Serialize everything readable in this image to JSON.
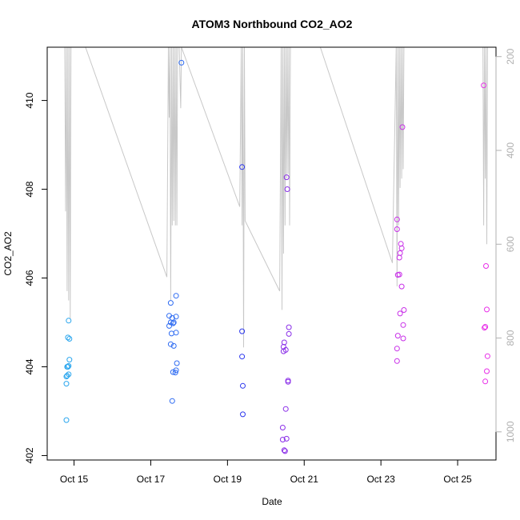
{
  "chart_data": {
    "type": "scatter",
    "title": "ATOM3 Northbound CO2_AO2",
    "xlabel": "Date",
    "ylabel": "CO2_AO2",
    "xlim": [
      "2016-10-14",
      "2016-10-26.3"
    ],
    "ylim": [
      401.9,
      411.2
    ],
    "x_ticks": [
      "Oct 15",
      "Oct 17",
      "Oct 19",
      "Oct 21",
      "Oct 23",
      "Oct 25"
    ],
    "y_ticks": [
      402,
      404,
      406,
      408,
      410
    ],
    "y2_ticks": [
      200,
      400,
      600,
      800,
      1000
    ],
    "y2_lim": [
      1060,
      180
    ],
    "y2_inverted": true,
    "grid": false,
    "points": [
      {
        "t": "2016-10-14 19:12",
        "y": 402.8,
        "color": "#2aa6ee"
      },
      {
        "t": "2016-10-14 19:12",
        "y": 403.62,
        "color": "#2aa6ee"
      },
      {
        "t": "2016-10-14 19:12",
        "y": 403.78,
        "color": "#2aa6ee"
      },
      {
        "t": "2016-10-14 19:41",
        "y": 403.8,
        "color": "#2aa6ee"
      },
      {
        "t": "2016-10-14 19:41",
        "y": 404.0,
        "color": "#2aa6ee"
      },
      {
        "t": "2016-10-14 20:10",
        "y": 404.66,
        "color": "#2aa6ee"
      },
      {
        "t": "2016-10-14 20:10",
        "y": 404.0,
        "color": "#2aa6ee"
      },
      {
        "t": "2016-10-14 20:38",
        "y": 403.83,
        "color": "#2aa6ee"
      },
      {
        "t": "2016-10-14 20:38",
        "y": 404.02,
        "color": "#2aa6ee"
      },
      {
        "t": "2016-10-14 21:07",
        "y": 404.16,
        "color": "#2aa6ee"
      },
      {
        "t": "2016-10-14 21:07",
        "y": 404.63,
        "color": "#2aa6ee"
      },
      {
        "t": "2016-10-14 20:38",
        "y": 405.04,
        "color": "#2aa6ee"
      },
      {
        "t": "2016-10-17 11:31",
        "y": 405.15,
        "color": "#2f6cf2"
      },
      {
        "t": "2016-10-17 11:31",
        "y": 404.92,
        "color": "#2f6cf2"
      },
      {
        "t": "2016-10-17 12:29",
        "y": 405.44,
        "color": "#2f6cf2"
      },
      {
        "t": "2016-10-17 12:29",
        "y": 405.0,
        "color": "#2f6cf2"
      },
      {
        "t": "2016-10-17 12:29",
        "y": 404.51,
        "color": "#2f6cf2"
      },
      {
        "t": "2016-10-17 12:58",
        "y": 404.75,
        "color": "#2f6cf2"
      },
      {
        "t": "2016-10-17 13:26",
        "y": 405.1,
        "color": "#2f6cf2"
      },
      {
        "t": "2016-10-17 13:26",
        "y": 403.23,
        "color": "#2f6cf2"
      },
      {
        "t": "2016-10-17 13:55",
        "y": 404.98,
        "color": "#2f6cf2"
      },
      {
        "t": "2016-10-17 13:55",
        "y": 403.88,
        "color": "#2f6cf2"
      },
      {
        "t": "2016-10-17 14:24",
        "y": 405.0,
        "color": "#2f6cf2"
      },
      {
        "t": "2016-10-17 14:24",
        "y": 404.47,
        "color": "#2f6cf2"
      },
      {
        "t": "2016-10-17 15:22",
        "y": 403.87,
        "color": "#2f6cf2"
      },
      {
        "t": "2016-10-17 15:50",
        "y": 405.6,
        "color": "#2f6cf2"
      },
      {
        "t": "2016-10-17 15:50",
        "y": 405.13,
        "color": "#2f6cf2"
      },
      {
        "t": "2016-10-17 15:50",
        "y": 404.77,
        "color": "#2f6cf2"
      },
      {
        "t": "2016-10-17 16:19",
        "y": 404.08,
        "color": "#2f6cf2"
      },
      {
        "t": "2016-10-17 15:50",
        "y": 403.92,
        "color": "#2f6cf2"
      },
      {
        "t": "2016-10-17 19:12",
        "y": 410.85,
        "color": "#2f6cf2"
      },
      {
        "t": "2016-10-19 09:07",
        "y": 408.5,
        "color": "#2a35ee"
      },
      {
        "t": "2016-10-19 09:07",
        "y": 404.8,
        "color": "#2a35ee"
      },
      {
        "t": "2016-10-19 09:07",
        "y": 404.23,
        "color": "#2a35ee"
      },
      {
        "t": "2016-10-19 09:36",
        "y": 403.57,
        "color": "#2a35ee"
      },
      {
        "t": "2016-10-19 09:36",
        "y": 402.93,
        "color": "#2a35ee"
      },
      {
        "t": "2016-10-20 10:34",
        "y": 402.63,
        "color": "#8a2ee8"
      },
      {
        "t": "2016-10-20 10:34",
        "y": 402.36,
        "color": "#8a2ee8"
      },
      {
        "t": "2016-10-20 11:02",
        "y": 404.35,
        "color": "#8a2ee8"
      },
      {
        "t": "2016-10-20 11:02",
        "y": 404.45,
        "color": "#8a2ee8"
      },
      {
        "t": "2016-10-20 11:31",
        "y": 404.55,
        "color": "#8a2ee8"
      },
      {
        "t": "2016-10-20 11:31",
        "y": 402.12,
        "color": "#8a2ee8"
      },
      {
        "t": "2016-10-20 12:00",
        "y": 402.1,
        "color": "#8a2ee8"
      },
      {
        "t": "2016-10-20 12:29",
        "y": 403.05,
        "color": "#8a2ee8"
      },
      {
        "t": "2016-10-20 12:29",
        "y": 404.38,
        "color": "#8a2ee8"
      },
      {
        "t": "2016-10-20 12:58",
        "y": 402.38,
        "color": "#8a2ee8"
      },
      {
        "t": "2016-10-20 12:58",
        "y": 408.27,
        "color": "#8a2ee8"
      },
      {
        "t": "2016-10-20 13:26",
        "y": 408.0,
        "color": "#8a2ee8"
      },
      {
        "t": "2016-10-20 13:55",
        "y": 403.69,
        "color": "#8a2ee8"
      },
      {
        "t": "2016-10-20 13:55",
        "y": 403.66,
        "color": "#8a2ee8"
      },
      {
        "t": "2016-10-20 14:24",
        "y": 404.89,
        "color": "#8a2ee8"
      },
      {
        "t": "2016-10-20 14:24",
        "y": 404.74,
        "color": "#8a2ee8"
      },
      {
        "t": "2016-10-23 10:05",
        "y": 407.32,
        "color": "#c82ee8"
      },
      {
        "t": "2016-10-23 10:05",
        "y": 407.1,
        "color": "#c82ee8"
      },
      {
        "t": "2016-10-23 10:34",
        "y": 406.07,
        "color": "#c82ee8"
      },
      {
        "t": "2016-10-23 10:05",
        "y": 404.41,
        "color": "#c82ee8"
      },
      {
        "t": "2016-10-23 10:05",
        "y": 404.13,
        "color": "#c82ee8"
      },
      {
        "t": "2016-10-23 10:34",
        "y": 404.7,
        "color": "#c82ee8"
      },
      {
        "t": "2016-10-23 11:31",
        "y": 406.08,
        "color": "#c82ee8"
      },
      {
        "t": "2016-10-23 11:31",
        "y": 406.46,
        "color": "#c82ee8"
      },
      {
        "t": "2016-10-23 12:00",
        "y": 406.56,
        "color": "#c82ee8"
      },
      {
        "t": "2016-10-23 12:00",
        "y": 405.2,
        "color": "#c82ee8"
      },
      {
        "t": "2016-10-23 12:29",
        "y": 406.77,
        "color": "#c82ee8"
      },
      {
        "t": "2016-10-23 12:58",
        "y": 406.67,
        "color": "#c82ee8"
      },
      {
        "t": "2016-10-23 12:58",
        "y": 405.81,
        "color": "#c82ee8"
      },
      {
        "t": "2016-10-23 13:26",
        "y": 409.4,
        "color": "#c82ee8"
      },
      {
        "t": "2016-10-23 13:55",
        "y": 404.94,
        "color": "#c82ee8"
      },
      {
        "t": "2016-10-23 13:55",
        "y": 404.64,
        "color": "#c82ee8"
      },
      {
        "t": "2016-10-23 14:24",
        "y": 405.28,
        "color": "#c82ee8"
      },
      {
        "t": "2016-10-25 16:19",
        "y": 410.34,
        "color": "#e82ee8"
      },
      {
        "t": "2016-10-25 16:48",
        "y": 404.88,
        "color": "#e82ee8"
      },
      {
        "t": "2016-10-25 17:17",
        "y": 404.9,
        "color": "#e82ee8"
      },
      {
        "t": "2016-10-25 17:17",
        "y": 403.67,
        "color": "#e82ee8"
      },
      {
        "t": "2016-10-25 17:46",
        "y": 406.27,
        "color": "#e82ee8"
      },
      {
        "t": "2016-10-25 18:14",
        "y": 405.29,
        "color": "#e82ee8"
      },
      {
        "t": "2016-10-25 18:14",
        "y": 403.9,
        "color": "#e82ee8"
      },
      {
        "t": "2016-10-25 18:43",
        "y": 404.24,
        "color": "#e82ee8"
      }
    ],
    "secondary_trace": {
      "color": "#c8c8c8",
      "axis": "right",
      "t": [
        "2016-10-14 18:14",
        "2016-10-14 18:43",
        "2016-10-14 19:12",
        "2016-10-14 19:41",
        "2016-10-14 20:10",
        "2016-10-14 20:38",
        "2016-10-14 21:07",
        "2016-10-14 21:36",
        "2016-10-14 22:05",
        "2016-10-15 07:12",
        "2016-10-17 10:05",
        "2016-10-17 11:02",
        "2016-10-17 11:31",
        "2016-10-17 12:00",
        "2016-10-17 12:29",
        "2016-10-17 12:58",
        "2016-10-17 13:26",
        "2016-10-17 13:55",
        "2016-10-17 14:24",
        "2016-10-17 14:53",
        "2016-10-17 15:22",
        "2016-10-17 15:50",
        "2016-10-17 16:19",
        "2016-10-17 16:48",
        "2016-10-17 17:46",
        "2016-10-17 18:43",
        "2016-10-17 19:12",
        "2016-10-19 07:41",
        "2016-10-19 08:38",
        "2016-10-19 09:07",
        "2016-10-19 09:36",
        "2016-10-19 10:05",
        "2016-10-19 10:34",
        "2016-10-19 11:02",
        "2016-10-20 08:38",
        "2016-10-20 09:36",
        "2016-10-20 10:05",
        "2016-10-20 10:34",
        "2016-10-20 11:02",
        "2016-10-20 11:31",
        "2016-10-20 12:00",
        "2016-10-20 12:29",
        "2016-10-20 12:58",
        "2016-10-20 13:26",
        "2016-10-20 13:55",
        "2016-10-20 14:24",
        "2016-10-20 14:53",
        "2016-10-20 15:22",
        "2016-10-21 10:05",
        "2016-10-23 07:12",
        "2016-10-23 09:36",
        "2016-10-23 10:05",
        "2016-10-23 10:34",
        "2016-10-23 11:02",
        "2016-10-23 11:31",
        "2016-10-23 12:00",
        "2016-10-23 12:29",
        "2016-10-23 12:58",
        "2016-10-23 13:26",
        "2016-10-23 13:55",
        "2016-10-23 14:24",
        "2016-10-24 22:05",
        "2016-10-25 15:50",
        "2016-10-25 16:19",
        "2016-10-25 16:48",
        "2016-10-25 17:17",
        "2016-10-25 17:46",
        "2016-10-25 18:14",
        "2016-10-25 18:43"
      ],
      "y": [
        180,
        530,
        180,
        700,
        180,
        720,
        180,
        760,
        180,
        180,
        670,
        180,
        330,
        180,
        720,
        180,
        560,
        180,
        550,
        180,
        560,
        180,
        560,
        180,
        180,
        310,
        180,
        520,
        180,
        560,
        180,
        820,
        180,
        550,
        700,
        180,
        740,
        180,
        620,
        180,
        560,
        180,
        460,
        180,
        450,
        180,
        560,
        180,
        180,
        640,
        180,
        690,
        180,
        560,
        180,
        480,
        180,
        460,
        180,
        440,
        180,
        180,
        180,
        560,
        180,
        460,
        180,
        600,
        180
      ]
    }
  }
}
